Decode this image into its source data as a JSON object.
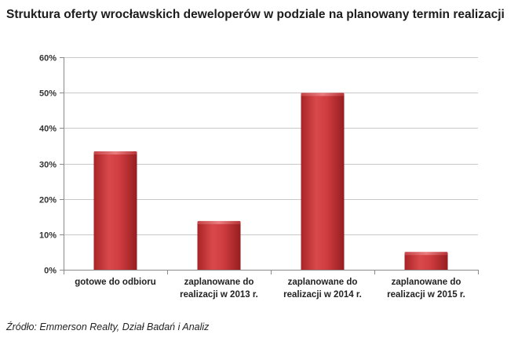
{
  "chart_data": {
    "type": "bar",
    "title": "Struktura oferty wrocławskich deweloperów w podziale na planowany termin realizacji",
    "categories": [
      [
        "gotowe do odbioru"
      ],
      [
        "zaplanowane do",
        "realizacji  w 2013 r."
      ],
      [
        "zaplanowane do",
        "realizacji w 2014 r."
      ],
      [
        "zaplanowane do",
        "realizacji w 2015 r."
      ]
    ],
    "values": [
      33,
      13.3,
      49.5,
      4.6
    ],
    "ylim": [
      0,
      60
    ],
    "yticks": [
      0,
      10,
      20,
      30,
      40,
      50,
      60
    ],
    "ytick_labels": [
      "0%",
      "10%",
      "20%",
      "30%",
      "40%",
      "50%",
      "60%"
    ],
    "grid": true,
    "legend": "none",
    "bar_color": "#c8383a"
  },
  "source": "Źródło: Emmerson Realty, Dział Badań i Analiz"
}
